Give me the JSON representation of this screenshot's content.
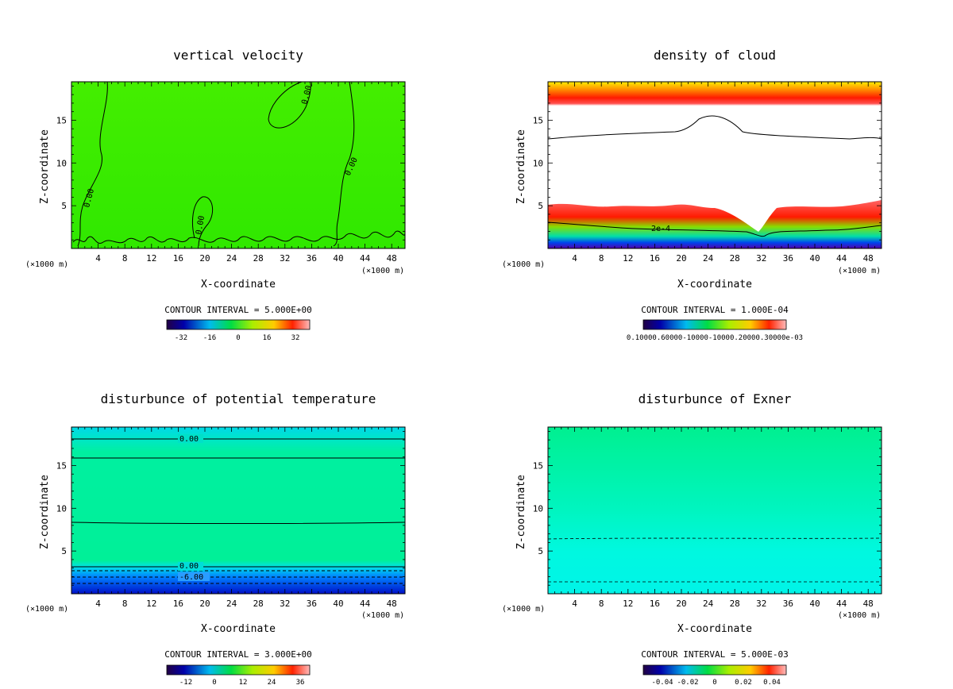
{
  "chart_data": [
    {
      "type": "heatmap",
      "title": "vertical velocity",
      "xlabel": "X-coordinate",
      "ylabel": "Z-coordinate",
      "x_unit": "(×1000 m)",
      "xlim": [
        0,
        50
      ],
      "ylim": [
        0,
        19.5
      ],
      "x_ticks": [
        "4",
        "8",
        "12",
        "16",
        "20",
        "24",
        "28",
        "32",
        "36",
        "40",
        "44",
        "48"
      ],
      "y_ticks": [
        "5",
        "10",
        "15"
      ],
      "contour_interval": "CONTOUR INTERVAL = 5.000E+00",
      "colorbar_ticks": [
        "-32",
        "-16",
        "0",
        "16",
        "32"
      ],
      "contour_labels": [
        "0.00",
        "0.00",
        "0.00",
        "0.00"
      ],
      "field_color": "#33ee00"
    },
    {
      "type": "heatmap",
      "title": "density of cloud",
      "xlabel": "X-coordinate",
      "ylabel": "Z-coordinate",
      "x_unit": "(×1000 m)",
      "xlim": [
        0,
        50
      ],
      "ylim": [
        0,
        19.5
      ],
      "x_ticks": [
        "4",
        "8",
        "12",
        "16",
        "20",
        "24",
        "28",
        "32",
        "36",
        "40",
        "44",
        "48"
      ],
      "y_ticks": [
        "5",
        "10",
        "15"
      ],
      "contour_interval": "CONTOUR INTERVAL = 1.000E-04",
      "colorbar_ticks_text": "0.10000.60000-10000-10000.20000.30000e-03",
      "contour_labels": [
        "2e-4"
      ],
      "field_color": "#ff2000"
    },
    {
      "type": "heatmap",
      "title": "disturbunce of potential temperature",
      "xlabel": "X-coordinate",
      "ylabel": "Z-coordinate",
      "x_unit": "(×1000 m)",
      "xlim": [
        0,
        50
      ],
      "ylim": [
        0,
        19.5
      ],
      "x_ticks": [
        "4",
        "8",
        "12",
        "16",
        "20",
        "24",
        "28",
        "32",
        "36",
        "40",
        "44",
        "48"
      ],
      "y_ticks": [
        "5",
        "10",
        "15"
      ],
      "contour_interval": "CONTOUR INTERVAL = 3.000E+00",
      "colorbar_ticks": [
        "-12",
        "0",
        "12",
        "24",
        "36"
      ],
      "contour_labels": [
        "0.00",
        "0.00",
        "-6.00"
      ],
      "field_color": "#00ee88"
    },
    {
      "type": "heatmap",
      "title": "disturbunce of Exner",
      "xlabel": "X-coordinate",
      "ylabel": "Z-coordinate",
      "x_unit": "(×1000 m)",
      "xlim": [
        0,
        50
      ],
      "ylim": [
        0,
        19.5
      ],
      "x_ticks": [
        "4",
        "8",
        "12",
        "16",
        "20",
        "24",
        "28",
        "32",
        "36",
        "40",
        "44",
        "48"
      ],
      "y_ticks": [
        "5",
        "10",
        "15"
      ],
      "contour_interval": "CONTOUR INTERVAL = 5.000E-03",
      "colorbar_ticks": [
        "-0.04",
        "-0.02",
        "0",
        "0.02",
        "0.04"
      ],
      "contour_labels": [],
      "field_color": "#00f5a0"
    }
  ]
}
